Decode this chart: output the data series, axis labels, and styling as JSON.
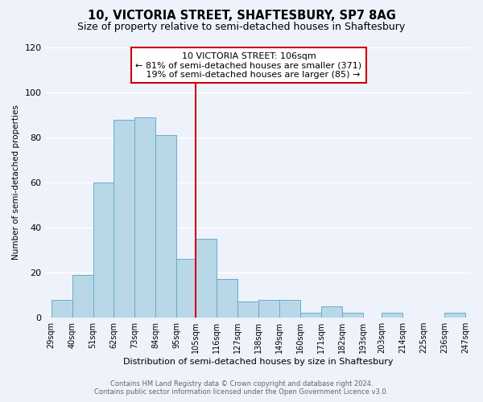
{
  "title": "10, VICTORIA STREET, SHAFTESBURY, SP7 8AG",
  "subtitle": "Size of property relative to semi-detached houses in Shaftesbury",
  "xlabel": "Distribution of semi-detached houses by size in Shaftesbury",
  "ylabel": "Number of semi-detached properties",
  "bins": [
    29,
    40,
    51,
    62,
    73,
    84,
    95,
    105,
    116,
    127,
    138,
    149,
    160,
    171,
    182,
    193,
    203,
    214,
    225,
    236,
    247
  ],
  "bin_labels": [
    "29sqm",
    "40sqm",
    "51sqm",
    "62sqm",
    "73sqm",
    "84sqm",
    "95sqm",
    "105sqm",
    "116sqm",
    "127sqm",
    "138sqm",
    "149sqm",
    "160sqm",
    "171sqm",
    "182sqm",
    "193sqm",
    "203sqm",
    "214sqm",
    "225sqm",
    "236sqm",
    "247sqm"
  ],
  "counts": [
    8,
    19,
    60,
    88,
    89,
    81,
    26,
    35,
    17,
    7,
    8,
    8,
    2,
    5,
    2,
    0,
    2,
    0,
    0,
    2
  ],
  "bar_color": "#b8d8e8",
  "bar_edge_color": "#6aaac8",
  "vline_color": "#cc0000",
  "vline_x": 105,
  "annotation_title": "10 VICTORIA STREET: 106sqm",
  "annotation_line1": "← 81% of semi-detached houses are smaller (371)",
  "annotation_line2": "   19% of semi-detached houses are larger (85) →",
  "annotation_box_color": "#ffffff",
  "annotation_box_edge_color": "#cc0000",
  "ylim": [
    0,
    120
  ],
  "yticks": [
    0,
    20,
    40,
    60,
    80,
    100,
    120
  ],
  "footer_line1": "Contains HM Land Registry data © Crown copyright and database right 2024.",
  "footer_line2": "Contains public sector information licensed under the Open Government Licence v3.0.",
  "background_color": "#eef2fb",
  "grid_color": "#ffffff",
  "title_fontsize": 10.5,
  "subtitle_fontsize": 9
}
